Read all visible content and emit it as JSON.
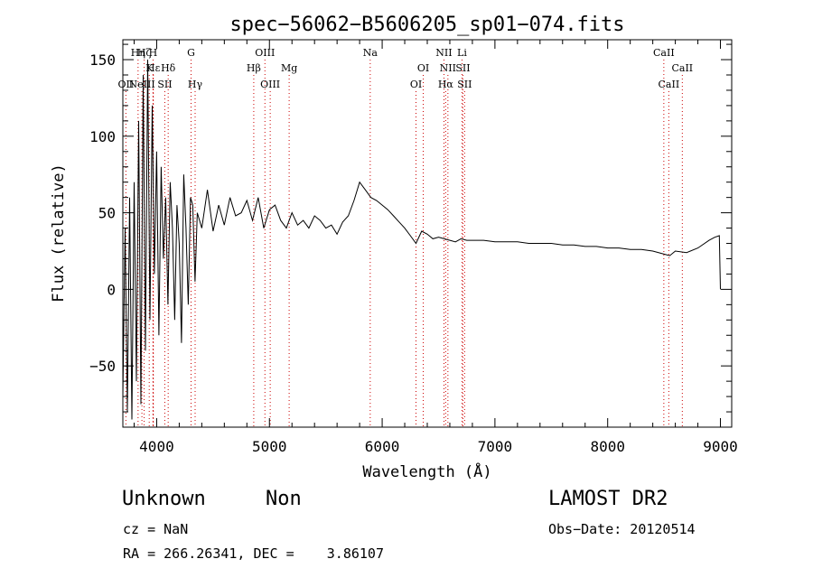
{
  "chart_data": {
    "type": "line",
    "title": "spec−56062−B5606205_sp01−074.fits",
    "xlabel": "Wavelength (Å)",
    "ylabel": "Flux (relative)",
    "xlim": [
      3700,
      9100
    ],
    "ylim": [
      -90,
      163
    ],
    "xticks": [
      4000,
      5000,
      6000,
      7000,
      8000,
      9000
    ],
    "xtick_labels": [
      "4000",
      "5000",
      "6000",
      "7000",
      "8000",
      "9000"
    ],
    "yticks": [
      -50,
      0,
      50,
      100,
      150
    ],
    "ytick_labels": [
      "−50",
      "0",
      "50",
      "100",
      "150"
    ],
    "grid": false,
    "line_markers": [
      {
        "label": "Hη",
        "wavelength": 3835,
        "row": 0
      },
      {
        "label": "Hζ",
        "wavelength": 3889,
        "row": 0
      },
      {
        "label": "H",
        "wavelength": 3968,
        "row": 0
      },
      {
        "label": "Hε",
        "wavelength": 3970,
        "row": 1
      },
      {
        "label": "K",
        "wavelength": 3934,
        "row": 1
      },
      {
        "label": "Hδ",
        "wavelength": 4102,
        "row": 1
      },
      {
        "label": "OII",
        "wavelength": 3727,
        "row": 2
      },
      {
        "label": "NeIII",
        "wavelength": 3869,
        "row": 2
      },
      {
        "label": "SII",
        "wavelength": 4072,
        "row": 2
      },
      {
        "label": "G",
        "wavelength": 4305,
        "row": 0
      },
      {
        "label": "Hγ",
        "wavelength": 4341,
        "row": 2
      },
      {
        "label": "OIII",
        "wavelength": 4960,
        "row": 0
      },
      {
        "label": "Hβ",
        "wavelength": 4861,
        "row": 1
      },
      {
        "label": "Mg",
        "wavelength": 5175,
        "row": 1
      },
      {
        "label": "OIII",
        "wavelength": 5007,
        "row": 2
      },
      {
        "label": "Na",
        "wavelength": 5894,
        "row": 0
      },
      {
        "label": "NII",
        "wavelength": 6548,
        "row": 0
      },
      {
        "label": "Li",
        "wavelength": 6708,
        "row": 0
      },
      {
        "label": "OI",
        "wavelength": 6364,
        "row": 1
      },
      {
        "label": "NII",
        "wavelength": 6583,
        "row": 1
      },
      {
        "label": "SII",
        "wavelength": 6716,
        "row": 1
      },
      {
        "label": "OI",
        "wavelength": 6300,
        "row": 2
      },
      {
        "label": "Hα",
        "wavelength": 6563,
        "row": 2
      },
      {
        "label": "SII",
        "wavelength": 6731,
        "row": 2
      },
      {
        "label": "CaII",
        "wavelength": 8498,
        "row": 0
      },
      {
        "label": "CaII",
        "wavelength": 8662,
        "row": 1
      },
      {
        "label": "CaII",
        "wavelength": 8542,
        "row": 2
      }
    ],
    "series": [
      {
        "x": [
          3700,
          3720,
          3740,
          3760,
          3780,
          3800,
          3820,
          3840,
          3860,
          3880,
          3900,
          3920,
          3940,
          3960,
          3980,
          4000,
          4020,
          4040,
          4060,
          4080,
          4100,
          4120,
          4140,
          4160,
          4180,
          4200,
          4220,
          4240,
          4260,
          4280,
          4300,
          4320,
          4340,
          4360,
          4380,
          4400,
          4450,
          4500,
          4550,
          4600,
          4650,
          4700,
          4750,
          4800,
          4850,
          4900,
          4950,
          5000,
          5050,
          5100,
          5150,
          5200,
          5250,
          5300,
          5350,
          5400,
          5450,
          5500,
          5550,
          5600,
          5650,
          5700,
          5750,
          5800,
          5850,
          5900,
          5950,
          6000,
          6050,
          6100,
          6150,
          6200,
          6250,
          6300,
          6350,
          6400,
          6450,
          6500,
          6550,
          6600,
          6650,
          6700,
          6750,
          6800,
          6900,
          7000,
          7100,
          7200,
          7300,
          7400,
          7500,
          7600,
          7700,
          7800,
          7900,
          8000,
          8100,
          8200,
          8300,
          8400,
          8500,
          8550,
          8600,
          8700,
          8800,
          8900,
          8950,
          8990,
          9000
        ],
        "y": [
          -70,
          40,
          -80,
          60,
          -85,
          70,
          -60,
          110,
          -75,
          140,
          -40,
          150,
          -20,
          120,
          10,
          90,
          -30,
          80,
          20,
          60,
          -10,
          70,
          40,
          -20,
          55,
          30,
          -35,
          75,
          40,
          -10,
          60,
          55,
          5,
          50,
          45,
          40,
          65,
          38,
          55,
          42,
          60,
          48,
          50,
          58,
          45,
          60,
          40,
          52,
          55,
          45,
          40,
          50,
          42,
          45,
          40,
          48,
          45,
          40,
          42,
          36,
          44,
          48,
          58,
          70,
          65,
          60,
          58,
          55,
          52,
          48,
          44,
          40,
          35,
          30,
          38,
          36,
          33,
          34,
          33,
          32,
          31,
          33,
          32,
          32,
          32,
          31,
          31,
          31,
          30,
          30,
          30,
          29,
          29,
          28,
          28,
          27,
          27,
          26,
          26,
          25,
          23,
          22,
          25,
          24,
          27,
          32,
          34,
          35,
          0
        ]
      }
    ]
  },
  "info": {
    "object_class": "Unknown",
    "subclass": "Non",
    "survey": "LAMOST DR2",
    "cz": "cz = NaN",
    "obs_date": "Obs−Date: 20120514",
    "coords": "RA = 266.26341, DEC =    3.86107"
  }
}
